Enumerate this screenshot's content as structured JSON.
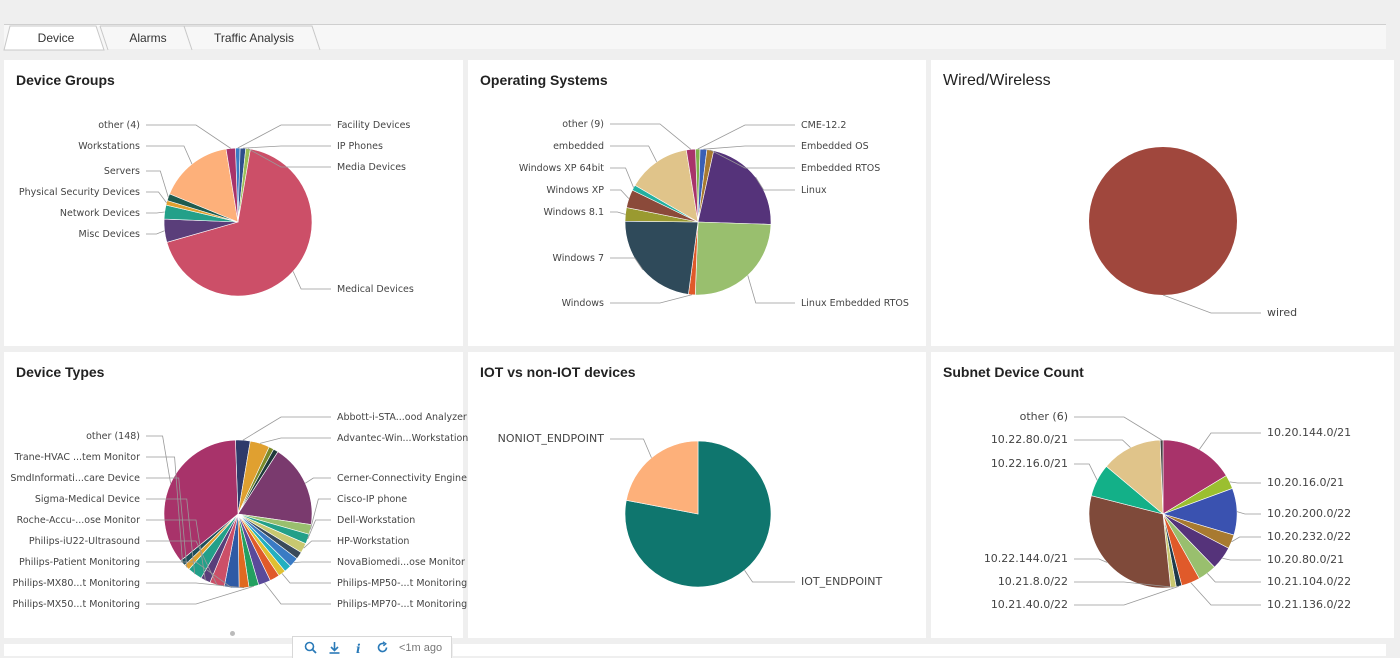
{
  "tabs": [
    {
      "label": "Device",
      "active": true
    },
    {
      "label": "Alarms",
      "active": false
    },
    {
      "label": "Traffic Analysis",
      "active": false
    }
  ],
  "panels": {
    "device_groups": {
      "title": "Device Groups"
    },
    "operating_systems": {
      "title": "Operating Systems"
    },
    "wired_wireless": {
      "title": "Wired/Wireless"
    },
    "device_types": {
      "title": "Device Types"
    },
    "iot": {
      "title": "IOT vs non-IOT devices"
    },
    "subnet": {
      "title": "Subnet Device Count"
    }
  },
  "toolbar": {
    "search_icon": "search-icon",
    "download_icon": "download-icon",
    "info_icon": "info-icon",
    "refresh_icon": "refresh-icon",
    "updated": "<1m ago"
  },
  "chart_data": [
    {
      "id": "device_groups",
      "type": "pie",
      "title": "Device Groups",
      "slices": [
        {
          "label": "Facility Devices",
          "value": 1,
          "color": "#3a7bc4"
        },
        {
          "label": "IP Phones",
          "value": 1.2,
          "color": "#2f4f8a"
        },
        {
          "label": "Media Devices",
          "value": 1,
          "color": "#9bbf56"
        },
        {
          "label": "Medical Devices",
          "value": 67,
          "color": "#cc4f68"
        },
        {
          "label": "Misc Devices",
          "value": 5,
          "color": "#5a3e7a"
        },
        {
          "label": "Network Devices",
          "value": 3,
          "color": "#23a089"
        },
        {
          "label": "Physical Security Devices",
          "value": 1,
          "color": "#e0a030"
        },
        {
          "label": "Servers",
          "value": 1.5,
          "color": "#1f5c4f"
        },
        {
          "label": "Workstations",
          "value": 16,
          "color": "#fdb07a"
        },
        {
          "label": "other (4)",
          "value": 2,
          "color": "#a8336a"
        }
      ]
    },
    {
      "id": "operating_systems",
      "type": "pie",
      "title": "Operating Systems",
      "slices": [
        {
          "label": "CME-12.2",
          "value": 1,
          "color": "#7fb04a"
        },
        {
          "label": "Embedded OS",
          "value": 1.5,
          "color": "#3a5fb5"
        },
        {
          "label": "Embedded RTOS",
          "value": 1.5,
          "color": "#a87a30"
        },
        {
          "label": "Linux",
          "value": 22,
          "color": "#55337a"
        },
        {
          "label": "Linux Embedded RTOS",
          "value": 25,
          "color": "#99bf6e"
        },
        {
          "label": "Windows",
          "value": 1.5,
          "color": "#e05a2a"
        },
        {
          "label": "Windows 7",
          "value": 23,
          "color": "#2f4a5a"
        },
        {
          "label": "Windows 8.1",
          "value": 3,
          "color": "#9a9a30"
        },
        {
          "label": "Windows XP",
          "value": 4,
          "color": "#8b4a3a"
        },
        {
          "label": "Windows XP 64bit",
          "value": 1.2,
          "color": "#23b0a0"
        },
        {
          "label": "embedded",
          "value": 14,
          "color": "#e0c48a"
        },
        {
          "label": "other (9)",
          "value": 2,
          "color": "#a8336a"
        }
      ]
    },
    {
      "id": "wired_wireless",
      "type": "pie",
      "title": "Wired/Wireless",
      "slices": [
        {
          "label": "wired",
          "value": 100,
          "color": "#a0473d"
        }
      ]
    },
    {
      "id": "device_types",
      "type": "pie",
      "title": "Device Types",
      "slices": [
        {
          "label": "Abbott-i-STA...ood Analyzer",
          "value": 3,
          "color": "#2f3a6a"
        },
        {
          "label": "Advantec-Win...Workstation",
          "value": 4,
          "color": "#e0a030"
        },
        {
          "label": "",
          "value": 1,
          "color": "#7a8a2a"
        },
        {
          "label": "",
          "value": 1,
          "color": "#1f3a3a"
        },
        {
          "label": "Cerner-Connectivity Engine",
          "value": 17,
          "color": "#7a3a6e"
        },
        {
          "label": "Cisco-IP phone",
          "value": 2,
          "color": "#99bf6e"
        },
        {
          "label": "Dell-Workstation",
          "value": 2,
          "color": "#23a089"
        },
        {
          "label": "HP-Workstation",
          "value": 2,
          "color": "#c8c870"
        },
        {
          "label": "",
          "value": 1.5,
          "color": "#3a4a5a"
        },
        {
          "label": "NovaBiomedi...ose Monitor",
          "value": 2,
          "color": "#3a7bc4"
        },
        {
          "label": "",
          "value": 1.5,
          "color": "#23b0c0"
        },
        {
          "label": "Philips-MP50-...t Monitoring",
          "value": 1.5,
          "color": "#e0c030"
        },
        {
          "label": "",
          "value": 2,
          "color": "#e05a2a"
        },
        {
          "label": "Philips-MP70-...t Monitoring",
          "value": 2.5,
          "color": "#5a4a9a"
        },
        {
          "label": "Philips-MX50...t Monitoring",
          "value": 2,
          "color": "#23a060"
        },
        {
          "label": "Philips-MX80...t Monitoring",
          "value": 2,
          "color": "#e06a20"
        },
        {
          "label": "Philips-Patient Monitoring",
          "value": 3,
          "color": "#2f5aa5"
        },
        {
          "label": "Philips-iU22-Ultrasound",
          "value": 3,
          "color": "#cc4f68"
        },
        {
          "label": "Roche-Accu-...ose Monitor",
          "value": 2,
          "color": "#5a3e7a"
        },
        {
          "label": "Sigma-Medical Device",
          "value": 3,
          "color": "#23a089"
        },
        {
          "label": "SmdInformati...care Device",
          "value": 1.2,
          "color": "#e0a030"
        },
        {
          "label": "Trane-HVAC ...tem Monitor",
          "value": 1.2,
          "color": "#1f4f5a"
        },
        {
          "label": "other (148)",
          "value": 33,
          "color": "#a8336a"
        }
      ]
    },
    {
      "id": "iot",
      "type": "pie",
      "title": "IOT vs non-IOT devices",
      "slices": [
        {
          "label": "IOT_ENDPOINT",
          "value": 78,
          "color": "#0f766e"
        },
        {
          "label": "NONIOT_ENDPOINT",
          "value": 22,
          "color": "#fdb07a"
        }
      ]
    },
    {
      "id": "subnet",
      "type": "pie",
      "title": "Subnet Device Count",
      "slices": [
        {
          "label": "10.20.144.0/21",
          "value": 16,
          "color": "#a8336a"
        },
        {
          "label": "10.20.16.0/21",
          "value": 3,
          "color": "#9bbf30"
        },
        {
          "label": "10.20.200.0/22",
          "value": 10,
          "color": "#3a52b0"
        },
        {
          "label": "10.20.232.0/22",
          "value": 3,
          "color": "#a87a30"
        },
        {
          "label": "10.20.80.0/21",
          "value": 5,
          "color": "#55337a"
        },
        {
          "label": "10.21.104.0/22",
          "value": 4,
          "color": "#99bf6e"
        },
        {
          "label": "10.21.136.0/22",
          "value": 4,
          "color": "#e05a2a"
        },
        {
          "label": "10.21.40.0/22",
          "value": 1.2,
          "color": "#1f3a4a"
        },
        {
          "label": "10.21.8.0/22",
          "value": 1.2,
          "color": "#c8c870"
        },
        {
          "label": "10.22.144.0/21",
          "value": 30,
          "color": "#7f4a3a"
        },
        {
          "label": "10.22.16.0/21",
          "value": 7,
          "color": "#13b088"
        },
        {
          "label": "10.22.80.0/21",
          "value": 13,
          "color": "#e0c48a"
        },
        {
          "label": "other (6)",
          "value": 0.6,
          "color": "#444"
        }
      ]
    }
  ]
}
